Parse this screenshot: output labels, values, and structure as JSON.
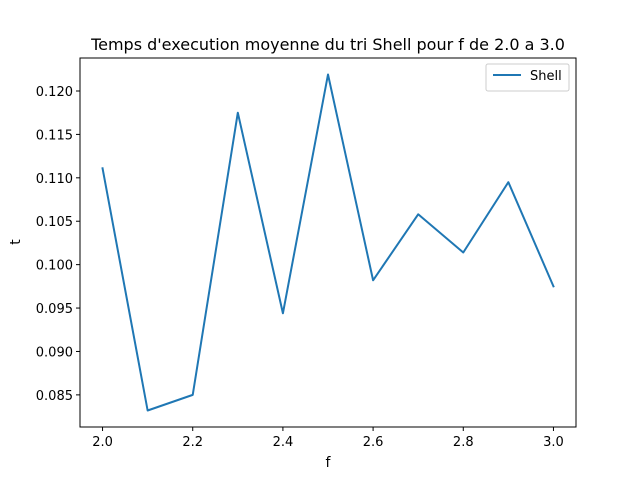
{
  "chart_data": {
    "type": "line",
    "title": "Temps d'execution moyenne du tri Shell pour f de 2.0 a 3.0",
    "xlabel": "f",
    "ylabel": "t",
    "xlim": [
      1.95,
      3.05
    ],
    "ylim": [
      0.0813,
      0.1238
    ],
    "x_ticks": [
      "2.0",
      "2.2",
      "2.4",
      "2.6",
      "2.8",
      "3.0"
    ],
    "y_ticks": [
      "0.085",
      "0.090",
      "0.095",
      "0.100",
      "0.105",
      "0.110",
      "0.115",
      "0.120"
    ],
    "grid": false,
    "legend_position": "top-right",
    "series": [
      {
        "name": "Shell",
        "color": "#1f77b4",
        "x": [
          2.0,
          2.1,
          2.2,
          2.3,
          2.4,
          2.5,
          2.6,
          2.7,
          2.8,
          2.9,
          3.0
        ],
        "y": [
          0.1111,
          0.0832,
          0.085,
          0.1175,
          0.0944,
          0.1219,
          0.0982,
          0.1058,
          0.1014,
          0.1095,
          0.0975
        ]
      }
    ]
  }
}
